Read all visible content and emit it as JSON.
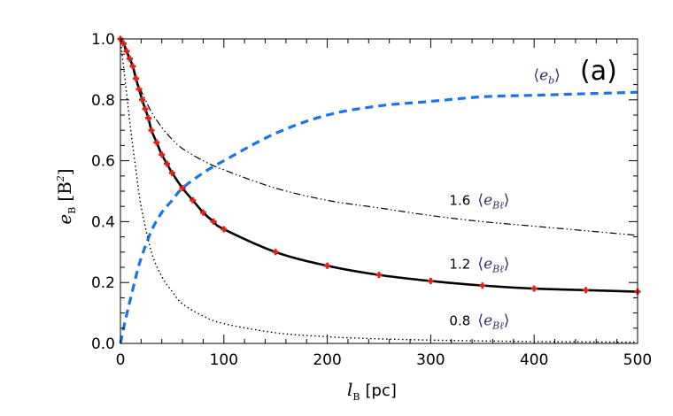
{
  "chart_data": {
    "type": "line",
    "panel_label": "(a)",
    "xlabel": {
      "main": "l",
      "sub": "B",
      "unit": "[pc]"
    },
    "ylabel": {
      "main": "e",
      "sub": "B",
      "unit": "[B",
      "unit_sup": "2",
      "unit_close": "]"
    },
    "xlim": [
      0,
      500
    ],
    "ylim": [
      0.0,
      1.0
    ],
    "x_ticks": [
      0,
      100,
      200,
      300,
      400,
      500
    ],
    "x_tick_labels": [
      "0",
      "100",
      "200",
      "300",
      "400",
      "500"
    ],
    "y_ticks": [
      0.0,
      0.2,
      0.4,
      0.6,
      0.8,
      1.0
    ],
    "y_tick_labels": [
      "0.0",
      "0.2",
      "0.4",
      "0.6",
      "0.8",
      "1.0"
    ],
    "series": [
      {
        "name": "<e_b>",
        "style": "dashed",
        "color": "#1a73e8",
        "x": [
          0,
          5,
          10,
          15,
          20,
          30,
          40,
          50,
          60,
          80,
          100,
          150,
          200,
          250,
          300,
          350,
          400,
          450,
          500
        ],
        "y": [
          0.0,
          0.08,
          0.15,
          0.22,
          0.28,
          0.37,
          0.43,
          0.47,
          0.51,
          0.56,
          0.6,
          0.69,
          0.75,
          0.78,
          0.795,
          0.81,
          0.815,
          0.82,
          0.825
        ]
      },
      {
        "name": "1.6 <e_B_l>",
        "style": "dash-dot-dot",
        "color": "#000000",
        "x": [
          0,
          5,
          10,
          15,
          20,
          30,
          40,
          50,
          60,
          80,
          100,
          150,
          200,
          250,
          300,
          350,
          400,
          450,
          500
        ],
        "y": [
          1.0,
          0.96,
          0.92,
          0.87,
          0.83,
          0.76,
          0.71,
          0.67,
          0.64,
          0.6,
          0.57,
          0.51,
          0.47,
          0.445,
          0.42,
          0.4,
          0.385,
          0.37,
          0.355
        ]
      },
      {
        "name": "1.2 <e_B_l>",
        "style": "solid",
        "color": "#000000",
        "markers": true,
        "marker_color": "#e0201a",
        "x": [
          0,
          3,
          6,
          9,
          12,
          15,
          18,
          21,
          24,
          27,
          30,
          35,
          40,
          45,
          50,
          60,
          70,
          80,
          90,
          100,
          150,
          200,
          250,
          300,
          350,
          400,
          450,
          500
        ],
        "y": [
          1.0,
          0.985,
          0.96,
          0.935,
          0.91,
          0.87,
          0.835,
          0.8,
          0.77,
          0.74,
          0.7,
          0.66,
          0.62,
          0.59,
          0.56,
          0.51,
          0.47,
          0.43,
          0.4,
          0.375,
          0.3,
          0.255,
          0.225,
          0.205,
          0.19,
          0.18,
          0.175,
          0.17
        ]
      },
      {
        "name": "0.8 <e_B_l>",
        "style": "dotted",
        "color": "#000000",
        "x": [
          0,
          5,
          10,
          15,
          20,
          30,
          40,
          50,
          60,
          80,
          100,
          150,
          200,
          250,
          300,
          350,
          400,
          450,
          500
        ],
        "y": [
          1.0,
          0.85,
          0.7,
          0.57,
          0.45,
          0.3,
          0.22,
          0.17,
          0.13,
          0.09,
          0.065,
          0.035,
          0.022,
          0.015,
          0.011,
          0.008,
          0.006,
          0.005,
          0.004
        ]
      }
    ],
    "annotations": [
      {
        "name": "e-b",
        "prefix": "",
        "symbol": "e",
        "sub": "b",
        "at": [
          318,
          0.865
        ]
      },
      {
        "name": "1.6",
        "prefix": "1.6",
        "symbol": "e",
        "sub": "Bℓ",
        "at": [
          318,
          0.455
        ]
      },
      {
        "name": "1.2",
        "prefix": "1.2",
        "symbol": "e",
        "sub": "Bℓ",
        "at": [
          318,
          0.245
        ]
      },
      {
        "name": "0.8",
        "prefix": "0.8",
        "symbol": "e",
        "sub": "Bℓ",
        "at": [
          318,
          0.06
        ]
      }
    ]
  }
}
